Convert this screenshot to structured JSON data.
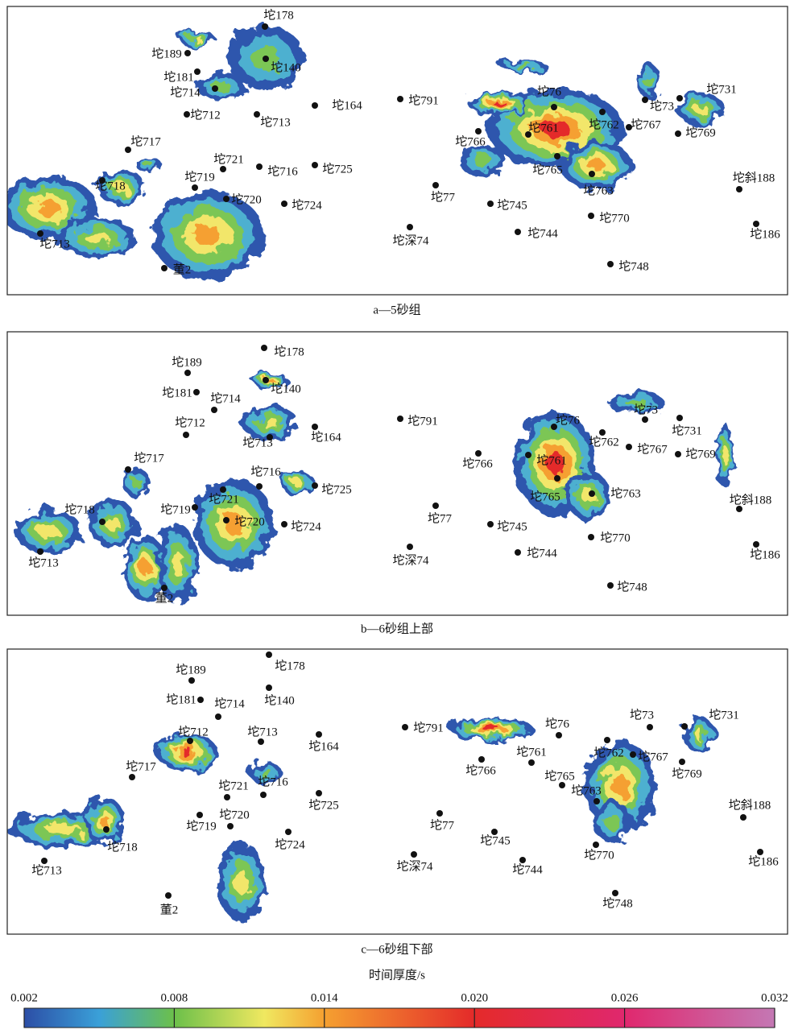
{
  "panels": [
    {
      "caption": "a—5砂组",
      "wells": [
        "坨178",
        "坨189",
        "坨140",
        "坨181",
        "坨714",
        "坨712",
        "坨713",
        "坨164",
        "坨791",
        "坨76",
        "坨73",
        "坨731",
        "坨762",
        "坨761",
        "坨767",
        "坨769",
        "坨766",
        "坨717",
        "坨721",
        "坨716",
        "坨725",
        "坨765",
        "坨719",
        "坨718",
        "坨763",
        "坨斜188",
        "坨77",
        "坨720",
        "坨724",
        "坨745",
        "坨770",
        "坨186",
        "坨深74",
        "坨744",
        "坨713",
        "董2",
        "坨748"
      ]
    },
    {
      "caption": "b—6砂组上部",
      "wells": [
        "坨178",
        "坨189",
        "坨140",
        "坨181",
        "坨714",
        "坨712",
        "坨713",
        "坨164",
        "坨791",
        "坨76",
        "坨73",
        "坨731",
        "坨762",
        "坨761",
        "坨767",
        "坨769",
        "坨766",
        "坨717",
        "坨721",
        "坨716",
        "坨725",
        "坨765",
        "坨719",
        "坨718",
        "坨763",
        "坨斜188",
        "坨77",
        "坨720",
        "坨724",
        "坨745",
        "坨770",
        "坨186",
        "坨深74",
        "坨744",
        "坨713",
        "董2",
        "坨748"
      ]
    },
    {
      "caption": "c—6砂组下部",
      "wells": [
        "坨178",
        "坨189",
        "坨140",
        "坨181",
        "坨714",
        "坨712",
        "坨713",
        "坨164",
        "坨791",
        "坨76",
        "坨73",
        "坨731",
        "坨762",
        "坨761",
        "坨767",
        "坨769",
        "坨766",
        "坨717",
        "坨721",
        "坨716",
        "坨725",
        "坨765",
        "坨719",
        "坨718",
        "坨763",
        "坨斜188",
        "坨77",
        "坨720",
        "坨724",
        "坨745",
        "坨770",
        "坨186",
        "坨深74",
        "坨744",
        "坨713",
        "董2",
        "坨748"
      ]
    }
  ],
  "colorbar": {
    "title": "时间厚度/s",
    "range": [
      0.002,
      0.032
    ],
    "ticks": [
      0.002,
      0.008,
      0.014,
      {
        "value": 0.02,
        "label": "0.020"
      },
      0.026,
      0.032
    ]
  }
}
